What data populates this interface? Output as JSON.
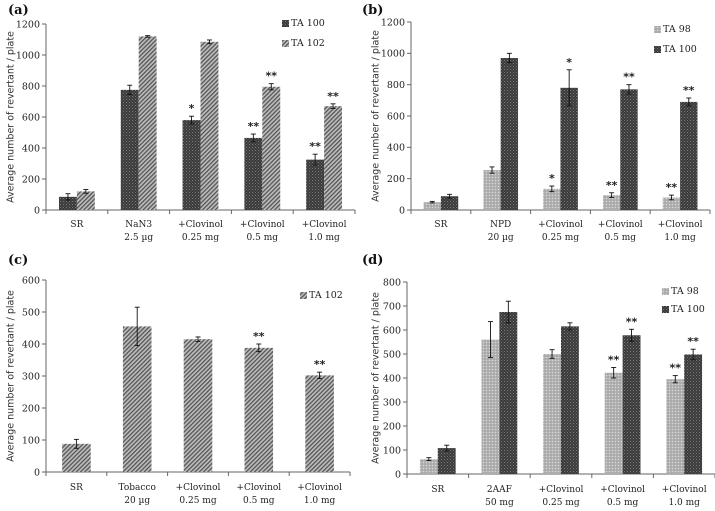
{
  "chart_data": [
    {
      "type": "bar",
      "panel_label": "(a)",
      "ylabel": "Average number of revertant / plate",
      "xlabel": "",
      "ylim": [
        0,
        1200
      ],
      "yticks": [
        0,
        200,
        400,
        600,
        800,
        1000,
        1200
      ],
      "grid": false,
      "legend_position": "top-right",
      "categories": [
        [
          "SR",
          ""
        ],
        [
          "NaN3",
          "2.5 µg"
        ],
        [
          "+Clovinol",
          "0.25 mg"
        ],
        [
          "+Clovinol",
          "0.5 mg"
        ],
        [
          "+Clovinol",
          "1.0 mg"
        ]
      ],
      "series": [
        {
          "name": "TA 100",
          "pattern": "dark-cross",
          "values": [
            85,
            775,
            580,
            465,
            325
          ],
          "errors": [
            20,
            30,
            25,
            25,
            35
          ],
          "significance": [
            "",
            "",
            "*",
            "**",
            "**"
          ]
        },
        {
          "name": "TA 102",
          "pattern": "hatch",
          "values": [
            120,
            1120,
            1085,
            795,
            670
          ],
          "errors": [
            12,
            5,
            12,
            20,
            15
          ],
          "significance": [
            "",
            "",
            "",
            "**",
            "**"
          ]
        }
      ]
    },
    {
      "type": "bar",
      "panel_label": "(b)",
      "ylabel": "Average number of revertant / plate",
      "xlabel": "",
      "ylim": [
        0,
        1200
      ],
      "yticks": [
        0,
        200,
        400,
        600,
        800,
        1000,
        1200
      ],
      "grid": false,
      "legend_position": "top-right",
      "categories": [
        [
          "SR",
          ""
        ],
        [
          "NPD",
          "20 µg"
        ],
        [
          "+Clovinol",
          "0.25 mg"
        ],
        [
          "+Clovinol",
          "0.5 mg"
        ],
        [
          "+Clovinol",
          "1.0 mg"
        ]
      ],
      "series": [
        {
          "name": "TA 98",
          "pattern": "light-cross",
          "values": [
            50,
            255,
            135,
            95,
            80
          ],
          "errors": [
            5,
            20,
            18,
            15,
            15
          ],
          "significance": [
            "",
            "",
            "*",
            "**",
            "**"
          ]
        },
        {
          "name": "TA 100",
          "pattern": "dark-cross",
          "values": [
            88,
            970,
            780,
            770,
            690
          ],
          "errors": [
            12,
            30,
            115,
            30,
            25
          ],
          "significance": [
            "",
            "",
            "*",
            "**",
            "**"
          ]
        }
      ]
    },
    {
      "type": "bar",
      "panel_label": "(c)",
      "ylabel": "Average number of revertant / plate",
      "xlabel": "",
      "ylim": [
        0,
        600
      ],
      "yticks": [
        0,
        100,
        200,
        300,
        400,
        500,
        600
      ],
      "grid": false,
      "legend_position": "top-right",
      "categories": [
        [
          "SR",
          ""
        ],
        [
          "Tobacco",
          "20 µg"
        ],
        [
          "+Clovinol",
          "0.25 mg"
        ],
        [
          "+Clovinol",
          "0.5 mg"
        ],
        [
          "+Clovinol",
          "1.0 mg"
        ]
      ],
      "series": [
        {
          "name": "TA  102",
          "pattern": "hatch",
          "values": [
            88,
            455,
            415,
            388,
            302
          ],
          "errors": [
            14,
            60,
            7,
            12,
            10
          ],
          "significance": [
            "",
            "",
            "",
            "**",
            "**"
          ]
        }
      ]
    },
    {
      "type": "bar",
      "panel_label": "(d)",
      "ylabel": "Average number of revertant / plate",
      "xlabel": "",
      "ylim": [
        0,
        800
      ],
      "yticks": [
        0,
        100,
        200,
        300,
        400,
        500,
        600,
        700,
        800
      ],
      "grid": false,
      "legend_position": "top-right",
      "categories": [
        [
          "SR",
          ""
        ],
        [
          "2AAF",
          "50 mg"
        ],
        [
          "+Clovinol",
          "0.25 mg"
        ],
        [
          "+Clovinol",
          "0.5 mg"
        ],
        [
          "+Clovinol",
          "1.0 mg"
        ]
      ],
      "series": [
        {
          "name": "TA 98",
          "pattern": "light-cross",
          "values": [
            62,
            560,
            500,
            422,
            395
          ],
          "errors": [
            6,
            75,
            18,
            22,
            15
          ],
          "significance": [
            "",
            "",
            "",
            "**",
            "**"
          ]
        },
        {
          "name": "TA 100",
          "pattern": "dark-cross",
          "values": [
            108,
            675,
            615,
            578,
            498
          ],
          "errors": [
            12,
            45,
            15,
            25,
            22
          ],
          "significance": [
            "",
            "",
            "",
            "**",
            "**"
          ]
        }
      ]
    }
  ]
}
